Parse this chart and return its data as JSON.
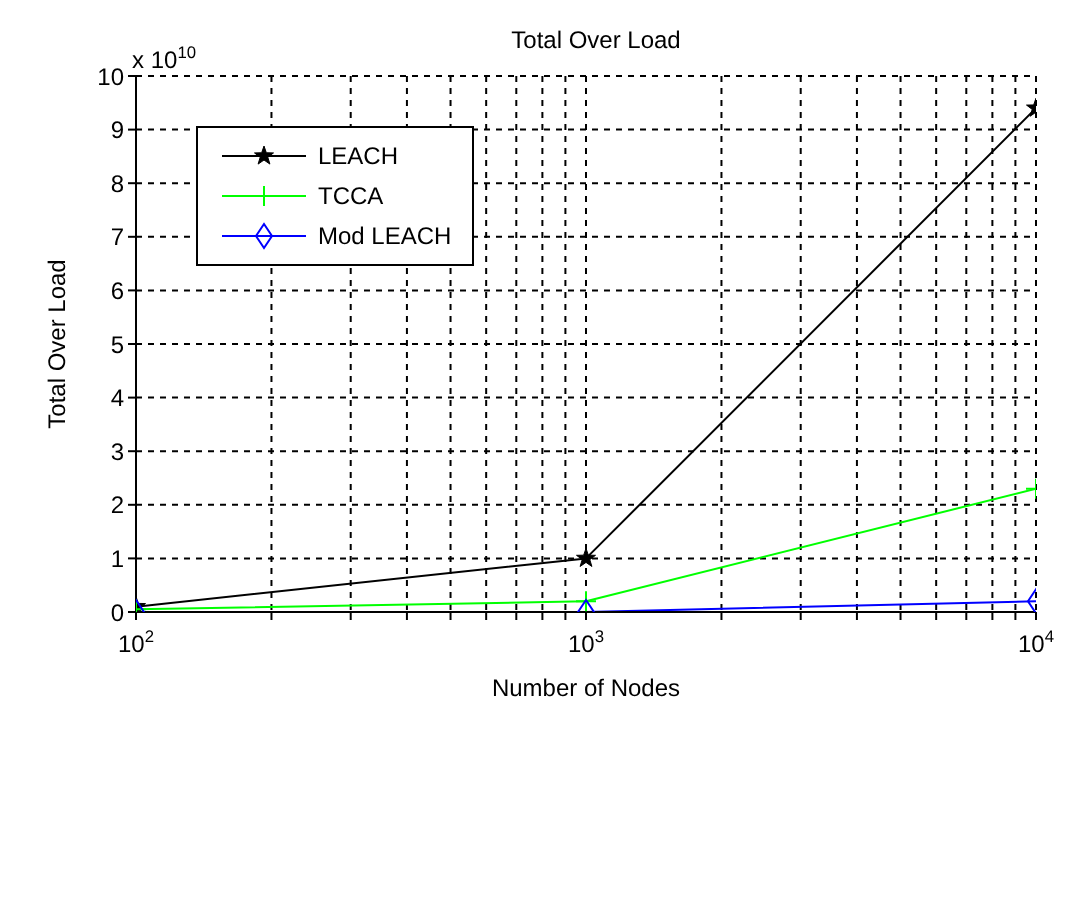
{
  "chart_data": {
    "type": "line",
    "title": "Total Over Load",
    "xlabel": "Number of Nodes",
    "ylabel": "Total Over Load",
    "annotations": [
      "x 10$^{10}$"
    ],
    "x": [
      100,
      1000,
      10000
    ],
    "series": [
      {
        "name": "LEACH",
        "color": "#000000",
        "marker": "star",
        "values": [
          0.1,
          1.0,
          9.4
        ]
      },
      {
        "name": "TCCA",
        "color": "#00ff00",
        "marker": "cross",
        "values": [
          0.05,
          0.2,
          2.3
        ]
      },
      {
        "name": "Mod LEACH",
        "color": "#0000ff",
        "marker": "diamond",
        "values": [
          0,
          0,
          0.2
        ]
      }
    ],
    "log": "x",
    "xlim": [
      100,
      10000
    ],
    "xticks": [
      {
        "value": 100,
        "label": "10$^{2}$"
      },
      {
        "value": 200,
        "label": null
      },
      {
        "value": 300,
        "label": null
      },
      {
        "value": 400,
        "label": null
      },
      {
        "value": 500,
        "label": null
      },
      {
        "value": 600,
        "label": null
      },
      {
        "value": 700,
        "label": null
      },
      {
        "value": 800,
        "label": null
      },
      {
        "value": 900,
        "label": null
      },
      {
        "value": 1000,
        "label": "10$^{3}$"
      },
      {
        "value": 2000,
        "label": null
      },
      {
        "value": 3000,
        "label": null
      },
      {
        "value": 4000,
        "label": null
      },
      {
        "value": 5000,
        "label": null
      },
      {
        "value": 6000,
        "label": null
      },
      {
        "value": 7000,
        "label": null
      },
      {
        "value": 8000,
        "label": null
      },
      {
        "value": 9000,
        "label": null
      },
      {
        "value": 10000,
        "label": "10$^{4}$"
      }
    ],
    "ylim": [
      0,
      10
    ],
    "yticks": [
      0,
      1,
      2,
      3,
      4,
      5,
      6,
      7,
      8,
      9,
      10
    ],
    "grid": true,
    "legend": "top left",
    "line_style": "solid"
  }
}
